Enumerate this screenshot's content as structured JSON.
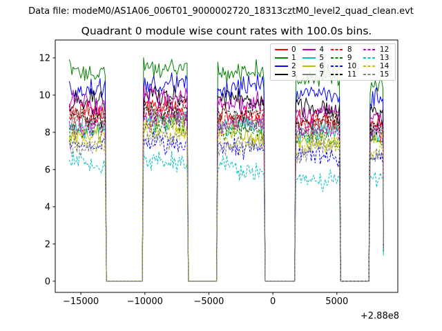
{
  "header": {
    "data_file_label": "Data file: modeM0/AS1A06_006T01_9000002720_18313cztM0_level2_quad_clean.evt"
  },
  "chart_data": {
    "type": "line",
    "title": "Quadrant 0 module wise count rates with 100.0s bins.",
    "xlabel": "",
    "ylabel": "",
    "x_axis_offset_label": "+2.88e8",
    "xlim": [
      -17000,
      9760
    ],
    "ylim": [
      -0.6,
      12.96
    ],
    "xticks": [
      -15000,
      -10000,
      -5000,
      0,
      5000
    ],
    "yticks": [
      0,
      2,
      4,
      6,
      8,
      10,
      12
    ],
    "grid": false,
    "bin_seconds": 100,
    "time_start": -15900,
    "time_end": 8600,
    "on_intervals": [
      [
        -15900,
        -13050
      ],
      [
        -10100,
        -6680
      ],
      [
        -4300,
        -650
      ],
      [
        1720,
        5230
      ],
      [
        7550,
        8600
      ]
    ],
    "segment_level_offsets": [
      -0.05,
      0.3,
      0.0,
      -0.35,
      -0.55
    ],
    "off_level": 0.0,
    "noise_sigma": 0.27,
    "module13_first_segment_extra": 0.7,
    "end_tail_level": 1.8,
    "seed": 7,
    "legend": {
      "position": "upper right",
      "columns": 4
    },
    "modules": [
      {
        "label": "0",
        "color": "#ff0000",
        "linestyle": "solid",
        "mean_rate": 8.95
      },
      {
        "label": "1",
        "color": "#008000",
        "linestyle": "solid",
        "mean_rate": 11.25
      },
      {
        "label": "2",
        "color": "#0000ff",
        "linestyle": "solid",
        "mean_rate": 10.35
      },
      {
        "label": "3",
        "color": "#000000",
        "linestyle": "solid",
        "mean_rate": 9.65
      },
      {
        "label": "4",
        "color": "#bf00bf",
        "linestyle": "solid",
        "mean_rate": 9.6
      },
      {
        "label": "5",
        "color": "#00bfbf",
        "linestyle": "solid",
        "mean_rate": 8.35
      },
      {
        "label": "6",
        "color": "#bfbf00",
        "linestyle": "solid",
        "mean_rate": 7.9
      },
      {
        "label": "7",
        "color": "#808080",
        "linestyle": "solid",
        "mean_rate": 8.6
      },
      {
        "label": "8",
        "color": "#ff0000",
        "linestyle": "dashed",
        "mean_rate": 8.85
      },
      {
        "label": "9",
        "color": "#008000",
        "linestyle": "dashed",
        "mean_rate": 8.05
      },
      {
        "label": "10",
        "color": "#0000ff",
        "linestyle": "dashed",
        "mean_rate": 7.15
      },
      {
        "label": "11",
        "color": "#000000",
        "linestyle": "dashed",
        "mean_rate": 9.05
      },
      {
        "label": "12",
        "color": "#bf00bf",
        "linestyle": "dashed",
        "mean_rate": 8.4
      },
      {
        "label": "13",
        "color": "#00bfbf",
        "linestyle": "dashed",
        "mean_rate": 5.95
      },
      {
        "label": "14",
        "color": "#bfbf00",
        "linestyle": "dashed",
        "mean_rate": 7.55
      },
      {
        "label": "15",
        "color": "#808080",
        "linestyle": "dashed",
        "mean_rate": 7.3
      }
    ]
  }
}
